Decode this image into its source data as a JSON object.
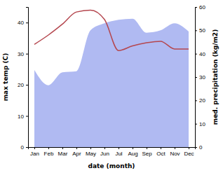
{
  "chart_data": {
    "type": "line",
    "x_label": "date (month)",
    "y_label": "max temp (C)",
    "y2_label": "med. precipitation (kg/m2)",
    "categories": [
      "Jan",
      "Feb",
      "Mar",
      "Apr",
      "May",
      "Jun",
      "Jul",
      "Aug",
      "Sep",
      "Oct",
      "Nov",
      "Dec"
    ],
    "series": [
      {
        "type": "area",
        "axis": "y2",
        "color": "#b0baf2",
        "values": [
          33,
          26.5,
          32,
          32.5,
          50,
          53,
          54.5,
          55,
          49,
          50,
          53,
          49.5
        ]
      },
      {
        "type": "line",
        "color": "#b5474f",
        "values": [
          33,
          36,
          39.5,
          43.4,
          44,
          41,
          31,
          32.5,
          33.5,
          34,
          31.5,
          31.5
        ]
      }
    ],
    "ylim": [
      0,
      45
    ],
    "yticks": [
      0,
      10,
      20,
      30,
      40
    ],
    "y2lim": [
      0,
      60
    ],
    "y2ticks": [
      0,
      10,
      20,
      30,
      40,
      50,
      60
    ]
  }
}
